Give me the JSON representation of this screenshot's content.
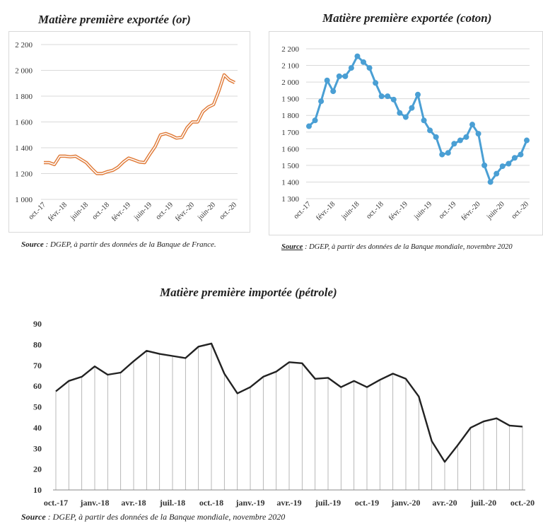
{
  "chart_data": [
    {
      "type": "line",
      "title": "Matière première exportée (or)",
      "source_label": "Source",
      "source_text": " : DGEP, à partir des données de la Banque de France.",
      "ylim": [
        1000,
        2200
      ],
      "yticks": [
        "2 200",
        "2 000",
        "1 800",
        "1 600",
        "1 400",
        "1 200",
        "1 000"
      ],
      "ytick_values": [
        2200,
        2000,
        1800,
        1600,
        1400,
        1200,
        1000
      ],
      "xtick_labels": [
        "oct.-17",
        "févr.-18",
        "juin-18",
        "oct.-18",
        "févr.-19",
        "juin-19",
        "oct.-19",
        "févr.-20",
        "juin-20",
        "oct.-20"
      ],
      "grid": "horizontal",
      "color": "#e07b39",
      "series": [
        {
          "values": [
            1285,
            1285,
            1270,
            1335,
            1335,
            1330,
            1335,
            1310,
            1285,
            1240,
            1200,
            1200,
            1215,
            1225,
            1250,
            1290,
            1320,
            1305,
            1290,
            1285,
            1350,
            1410,
            1500,
            1510,
            1495,
            1475,
            1480,
            1555,
            1600,
            1600,
            1680,
            1715,
            1735,
            1840,
            1965,
            1925,
            1905
          ]
        }
      ]
    },
    {
      "type": "line",
      "title": "Matière première exportée (coton)",
      "source_label": "Source",
      "source_text": " : DGEP, à partir des données de la Banque mondiale, novembre 2020",
      "ylim": [
        1300,
        2200
      ],
      "yticks": [
        "2 200",
        "2 100",
        "2 000",
        "1 900",
        "1 800",
        "1 700",
        "1 600",
        "1 500",
        "1 400",
        "1 300"
      ],
      "ytick_values": [
        2200,
        2100,
        2000,
        1900,
        1800,
        1700,
        1600,
        1500,
        1400,
        1300
      ],
      "xtick_labels": [
        "oct.-17",
        "févr.-18",
        "juin-18",
        "oct.-18",
        "févr.-19",
        "juin-19",
        "oct.-19",
        "févr.-20",
        "juin-20",
        "oct.-20"
      ],
      "grid": "horizontal",
      "color": "#4a9fd4",
      "series": [
        {
          "values": [
            1735,
            1770,
            1885,
            2010,
            1945,
            2035,
            2035,
            2085,
            2155,
            2120,
            2085,
            1995,
            1915,
            1915,
            1895,
            1815,
            1790,
            1845,
            1925,
            1770,
            1710,
            1670,
            1565,
            1575,
            1630,
            1650,
            1670,
            1745,
            1690,
            1500,
            1400,
            1450,
            1495,
            1510,
            1545,
            1565,
            1650
          ]
        }
      ]
    },
    {
      "type": "line",
      "title": "Matière première importée (pétrole)",
      "source_label": "Source",
      "source_text": " : DGEP, à partir des données de la Banque mondiale, novembre 2020",
      "ylim": [
        10,
        90
      ],
      "yticks": [
        "90",
        "80",
        "70",
        "60",
        "50",
        "40",
        "30",
        "20",
        "10"
      ],
      "ytick_values": [
        90,
        80,
        70,
        60,
        50,
        40,
        30,
        20,
        10
      ],
      "xtick_labels": [
        "oct.-17",
        "janv.-18",
        "avr.-18",
        "juil.-18",
        "oct.-18",
        "janv.-19",
        "avr.-19",
        "juil.-19",
        "oct.-19",
        "janv.-20",
        "avr.-20",
        "juil.-20",
        "oct.-20"
      ],
      "grid": "vertical",
      "color": "#222222",
      "series": [
        {
          "values": [
            57.5,
            62.5,
            64.5,
            69.5,
            65.5,
            66.5,
            72,
            77,
            75.5,
            74.5,
            73.5,
            79,
            80.5,
            66,
            56.5,
            59.5,
            64.5,
            67,
            71.5,
            71,
            63.5,
            64,
            59.5,
            62.5,
            59.5,
            63,
            66,
            63.5,
            55,
            33.5,
            23.5,
            31.5,
            40,
            43,
            44.5,
            41,
            40.5
          ]
        }
      ]
    }
  ]
}
